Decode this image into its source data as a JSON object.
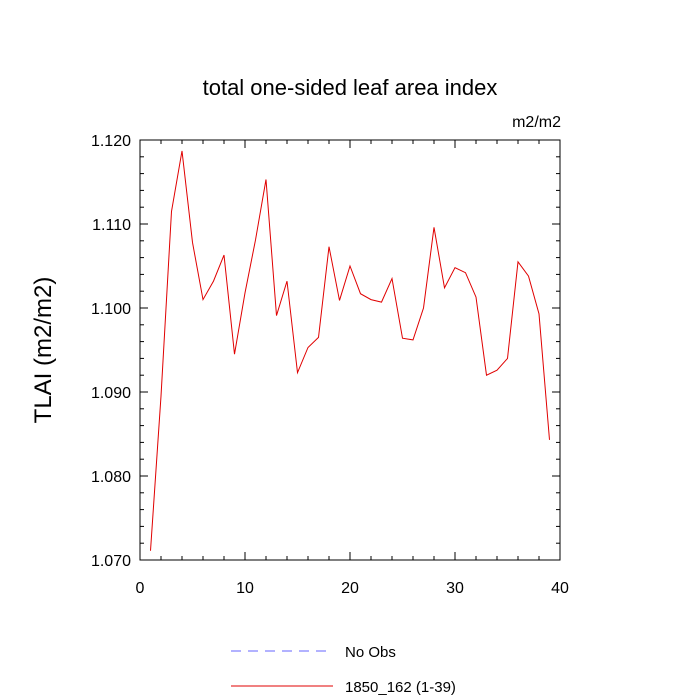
{
  "chart_data": {
    "type": "line",
    "title": "total one-sided leaf area index",
    "units": "m2/m2",
    "ylabel": "TLAI  (m2/m2)",
    "xlabel": "",
    "xlim": [
      0,
      40
    ],
    "ylim": [
      1.07,
      1.12
    ],
    "xticks": [
      0,
      10,
      20,
      30,
      40
    ],
    "xtick_labels": [
      "0",
      "10",
      "20",
      "30",
      "40"
    ],
    "yticks": [
      1.07,
      1.08,
      1.09,
      1.1,
      1.11,
      1.12
    ],
    "ytick_labels": [
      "1.070",
      "1.080",
      "1.090",
      "1.100",
      "1.110",
      "1.120"
    ],
    "grid": false,
    "legend_position": "bottom-center",
    "series": [
      {
        "name": "No Obs",
        "color": "#6666ff",
        "dash": "dashed",
        "x": [],
        "values": []
      },
      {
        "name": "1850_162 (1-39)",
        "color": "#e00000",
        "dash": "solid",
        "x": [
          1,
          2,
          3,
          4,
          5,
          6,
          7,
          8,
          9,
          10,
          11,
          12,
          13,
          14,
          15,
          16,
          17,
          18,
          19,
          20,
          21,
          22,
          23,
          24,
          25,
          26,
          27,
          28,
          29,
          30,
          31,
          32,
          33,
          34,
          35,
          36,
          37,
          38,
          39
        ],
        "values": [
          1.0711,
          1.0895,
          1.1115,
          1.1187,
          1.1078,
          1.101,
          1.1032,
          1.1063,
          1.0945,
          1.1018,
          1.1081,
          1.1153,
          1.0991,
          1.1032,
          1.0923,
          1.0953,
          1.0965,
          1.1073,
          1.1009,
          1.105,
          1.1017,
          1.101,
          1.1007,
          1.1035,
          1.0964,
          1.0962,
          1.1,
          1.1096,
          1.1024,
          1.1048,
          1.1042,
          1.1013,
          1.092,
          1.0926,
          1.094,
          1.1055,
          1.1038,
          1.0993,
          1.0843
        ]
      }
    ]
  }
}
